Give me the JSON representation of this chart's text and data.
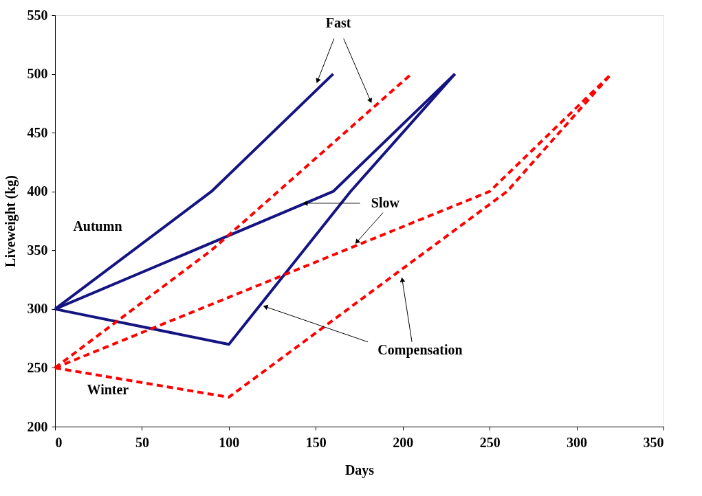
{
  "chart_data": {
    "type": "line",
    "xlabel": "Days",
    "ylabel": "Liveweight (kg)",
    "xlim": [
      0,
      350
    ],
    "xticks": [
      0,
      50,
      100,
      150,
      200,
      250,
      300,
      350
    ],
    "ylim": [
      200,
      550
    ],
    "yticks": [
      200,
      250,
      300,
      350,
      400,
      450,
      500,
      550
    ],
    "grid": false,
    "marker": "none",
    "series": [
      {
        "color": "#141482",
        "line_style": "solid",
        "x": [
          0,
          90,
          160
        ],
        "values": [
          300,
          400,
          500
        ]
      },
      {
        "color": "#141482",
        "line_style": "solid",
        "x": [
          0,
          160,
          230
        ],
        "values": [
          300,
          400,
          500
        ]
      },
      {
        "color": "#141482",
        "line_style": "solid",
        "x": [
          0,
          100,
          170,
          230
        ],
        "values": [
          300,
          270,
          400,
          500
        ]
      },
      {
        "color": "#ff0000",
        "line_style": "dashed",
        "x": [
          0,
          90,
          205
        ],
        "values": [
          250,
          350,
          500
        ]
      },
      {
        "color": "#ff0000",
        "line_style": "dashed",
        "x": [
          0,
          250,
          320
        ],
        "values": [
          250,
          400,
          500
        ]
      },
      {
        "color": "#ff0000",
        "line_style": "dashed",
        "x": [
          0,
          100,
          260,
          320
        ],
        "values": [
          250,
          225,
          400,
          500
        ]
      }
    ],
    "annotations": [
      {
        "text": "Fast",
        "x": 151,
        "y": 494
      },
      {
        "text": "Slow",
        "x": 144,
        "y": 390
      },
      {
        "text": "Compensation",
        "x": 121,
        "y": 302
      },
      "Autumn",
      "Winter"
    ]
  }
}
